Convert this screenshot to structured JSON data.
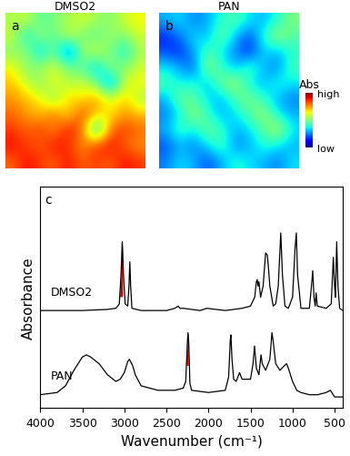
{
  "chart_data": [
    {
      "type": "heatmap",
      "title": "DMSO2",
      "annotation": "a",
      "tick_labels": false,
      "cells": [
        [
          0.55,
          0.6,
          0.45,
          0.5,
          0.55,
          0.6,
          0.55,
          0.5,
          0.6,
          0.65
        ],
        [
          0.6,
          0.35,
          0.55,
          0.45,
          0.6,
          0.5,
          0.45,
          0.55,
          0.5,
          0.6
        ],
        [
          0.5,
          0.55,
          0.3,
          0.5,
          0.15,
          0.55,
          0.6,
          0.5,
          0.35,
          0.55
        ],
        [
          0.65,
          0.5,
          0.55,
          0.6,
          0.5,
          0.45,
          0.3,
          0.55,
          0.5,
          0.6
        ],
        [
          0.7,
          0.6,
          0.5,
          0.65,
          0.55,
          0.6,
          0.5,
          0.2,
          0.6,
          0.65
        ],
        [
          0.75,
          0.7,
          0.65,
          0.5,
          0.7,
          0.65,
          0.75,
          0.6,
          0.7,
          0.55
        ],
        [
          0.8,
          0.75,
          0.7,
          0.8,
          0.65,
          0.85,
          0.7,
          0.65,
          0.75,
          0.7
        ],
        [
          0.85,
          0.8,
          0.85,
          0.75,
          0.9,
          0.8,
          0.3,
          0.8,
          0.85,
          0.8
        ],
        [
          0.9,
          0.85,
          0.8,
          0.9,
          0.85,
          0.75,
          0.85,
          0.9,
          0.8,
          0.75
        ],
        [
          0.8,
          0.9,
          0.85,
          0.8,
          0.9,
          0.8,
          0.85,
          0.8,
          0.9,
          0.85
        ]
      ],
      "color_range": [
        0,
        1
      ]
    },
    {
      "type": "heatmap",
      "title": "PAN",
      "annotation": "b",
      "tick_labels": false,
      "cells": [
        [
          0.3,
          0.35,
          0.25,
          0.3,
          0.4,
          0.45,
          0.35,
          0.3,
          0.4,
          0.5
        ],
        [
          0.15,
          0.25,
          0.35,
          0.3,
          0.5,
          0.3,
          0.2,
          0.4,
          0.55,
          0.45
        ],
        [
          0.2,
          0.15,
          0.3,
          0.45,
          0.35,
          0.25,
          0.15,
          0.35,
          0.3,
          0.4
        ],
        [
          0.35,
          0.3,
          0.2,
          0.55,
          0.4,
          0.3,
          0.45,
          0.3,
          0.25,
          0.45
        ],
        [
          0.45,
          0.35,
          0.4,
          0.3,
          0.5,
          0.55,
          0.35,
          0.3,
          0.4,
          0.35
        ],
        [
          0.3,
          0.5,
          0.45,
          0.35,
          0.3,
          0.45,
          0.5,
          0.4,
          0.3,
          0.25
        ],
        [
          0.25,
          0.35,
          0.55,
          0.4,
          0.3,
          0.35,
          0.45,
          0.55,
          0.35,
          0.3
        ],
        [
          0.3,
          0.45,
          0.35,
          0.5,
          0.4,
          0.3,
          0.35,
          0.45,
          0.6,
          0.35
        ],
        [
          0.2,
          0.3,
          0.25,
          0.35,
          0.45,
          0.25,
          0.3,
          0.4,
          0.35,
          0.3
        ],
        [
          0.25,
          0.35,
          0.3,
          0.2,
          0.3,
          0.4,
          0.35,
          0.3,
          0.25,
          0.35
        ]
      ],
      "color_range": [
        0,
        1
      ],
      "colorbar": {
        "title": "Abs",
        "range": [
          0,
          1
        ],
        "ticks": [
          {
            "value": 1,
            "label": "high"
          },
          {
            "value": 0,
            "label": "low"
          }
        ]
      }
    },
    {
      "type": "line",
      "annotation": "c",
      "xlabel": "Wavenumber (cm⁻¹)",
      "ylabel": "Absorbance",
      "xlim": [
        4000,
        400
      ],
      "xticks": [
        4000,
        3500,
        3000,
        2500,
        2000,
        1500,
        1000,
        500
      ],
      "ylim": [
        0,
        1
      ],
      "yticks": [],
      "tick_labels": "x",
      "series": [
        {
          "name": "DMSO2",
          "color": "#000000",
          "x": [
            4000,
            3500,
            3200,
            3100,
            3060,
            3040,
            3025,
            3010,
            2990,
            2960,
            2945,
            2935,
            2925,
            2910,
            2800,
            2500,
            2400,
            2360,
            2340,
            2300,
            2100,
            2020,
            1800,
            1600,
            1500,
            1450,
            1430,
            1420,
            1410,
            1400,
            1380,
            1350,
            1320,
            1300,
            1290,
            1270,
            1230,
            1200,
            1170,
            1140,
            1120,
            1090,
            1050,
            1000,
            970,
            955,
            940,
            900,
            800,
            775,
            760,
            745,
            730,
            720,
            705,
            600,
            540,
            515,
            500,
            490,
            475,
            460,
            440,
            400
          ],
          "values": [
            0.44,
            0.44,
            0.445,
            0.45,
            0.47,
            0.6,
            0.75,
            0.6,
            0.47,
            0.46,
            0.55,
            0.66,
            0.55,
            0.45,
            0.44,
            0.44,
            0.45,
            0.46,
            0.45,
            0.45,
            0.44,
            0.45,
            0.44,
            0.45,
            0.46,
            0.5,
            0.57,
            0.58,
            0.55,
            0.57,
            0.5,
            0.55,
            0.7,
            0.69,
            0.65,
            0.55,
            0.46,
            0.47,
            0.55,
            0.79,
            0.6,
            0.46,
            0.45,
            0.5,
            0.72,
            0.79,
            0.6,
            0.45,
            0.45,
            0.55,
            0.62,
            0.5,
            0.46,
            0.52,
            0.46,
            0.45,
            0.47,
            0.68,
            0.55,
            0.5,
            0.75,
            0.55,
            0.45,
            0.44
          ]
        },
        {
          "name": "PAN",
          "color": "#000000",
          "x": [
            4000,
            3800,
            3700,
            3600,
            3500,
            3450,
            3400,
            3300,
            3200,
            3100,
            3050,
            3000,
            2960,
            2940,
            2900,
            2870,
            2800,
            2600,
            2400,
            2300,
            2270,
            2250,
            2243,
            2235,
            2220,
            2200,
            2000,
            1800,
            1760,
            1740,
            1733,
            1720,
            1700,
            1670,
            1630,
            1600,
            1500,
            1470,
            1452,
            1430,
            1400,
            1375,
            1360,
            1320,
            1270,
            1245,
            1230,
            1200,
            1150,
            1100,
            1070,
            1050,
            1000,
            950,
            900,
            800,
            700,
            600,
            550,
            500,
            400
          ],
          "values": [
            0.06,
            0.07,
            0.1,
            0.17,
            0.23,
            0.24,
            0.23,
            0.2,
            0.15,
            0.12,
            0.13,
            0.16,
            0.21,
            0.22,
            0.19,
            0.15,
            0.1,
            0.08,
            0.08,
            0.09,
            0.12,
            0.3,
            0.34,
            0.3,
            0.11,
            0.08,
            0.07,
            0.08,
            0.14,
            0.31,
            0.33,
            0.22,
            0.13,
            0.12,
            0.16,
            0.13,
            0.13,
            0.2,
            0.28,
            0.18,
            0.15,
            0.24,
            0.2,
            0.17,
            0.22,
            0.34,
            0.3,
            0.2,
            0.17,
            0.19,
            0.2,
            0.18,
            0.12,
            0.08,
            0.07,
            0.06,
            0.06,
            0.07,
            0.08,
            0.05,
            0.05
          ]
        }
      ],
      "highlights": [
        {
          "series": "DMSO2",
          "x": [
            3055,
            3022
          ],
          "color": "#cc0000"
        },
        {
          "series": "PAN",
          "x": [
            2262,
            2240
          ],
          "color": "#cc0000"
        }
      ]
    }
  ]
}
